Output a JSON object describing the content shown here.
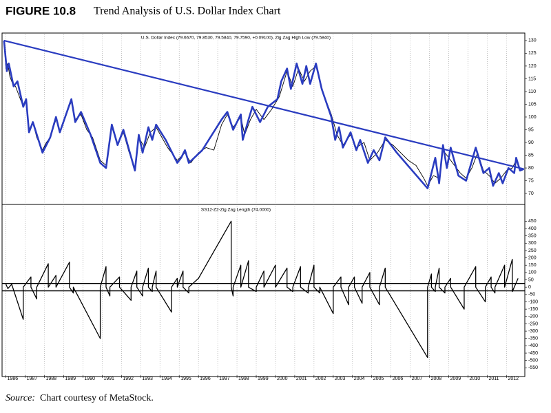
{
  "figure_label": "FIGURE 10.8",
  "figure_title": "Trend Analysis of U.S. Dollar Index Chart",
  "source": {
    "label": "Source:",
    "text": "Chart courtesy of MetaStock."
  },
  "chart_data": [
    {
      "type": "line",
      "title": "U.S. Dollar Index (79.6670, 79.8530, 79.5840, 79.7590, +0.09100), Zig Zag High Low (79.5840)",
      "xlim": [
        1985.8,
        2012.95
      ],
      "xticks": [
        1986,
        1987,
        1988,
        1989,
        1990,
        1991,
        1992,
        1993,
        1994,
        1995,
        1996,
        1997,
        1998,
        1999,
        2000,
        2001,
        2002,
        2003,
        2004,
        2005,
        2006,
        2007,
        2008,
        2009,
        2010,
        2011,
        2012
      ],
      "ylim": [
        65.7,
        132.4
      ],
      "yticks": [
        70,
        75,
        80,
        85,
        90,
        95,
        100,
        105,
        110,
        115,
        120,
        125,
        130
      ],
      "xgrid": true,
      "series": [
        {
          "color": "#000000",
          "width": 0.9,
          "x": [
            1985.9,
            1986.0,
            1986.1,
            1986.2,
            1986.35,
            1986.5,
            1986.7,
            1986.9,
            1987.05,
            1987.2,
            1987.4,
            1987.6,
            1987.9,
            1988.1,
            1988.3,
            1988.6,
            1988.8,
            1989.1,
            1989.4,
            1989.6,
            1989.9,
            1990.2,
            1990.5,
            1990.9,
            1991.2,
            1991.5,
            1991.8,
            1992.1,
            1992.4,
            1992.7,
            1992.9,
            1993.2,
            1993.5,
            1993.8,
            1994.1,
            1994.4,
            1994.9,
            1995.3,
            1995.6,
            1996.0,
            1996.4,
            1996.8,
            1997.2,
            1997.5,
            1997.8,
            1998.2,
            1998.4,
            1998.7,
            1999.0,
            1999.4,
            1999.8,
            2000.2,
            2000.6,
            2000.9,
            2001.2,
            2001.5,
            2001.8,
            2002.1,
            2002.5,
            2002.9,
            2003.2,
            2003.5,
            2003.9,
            2004.2,
            2004.6,
            2004.9,
            2005.3,
            2005.7,
            2006.1,
            2006.5,
            2006.9,
            2007.3,
            2007.7,
            2007.9,
            2008.2,
            2008.5,
            2008.7,
            2009.0,
            2009.3,
            2009.6,
            2009.9,
            2010.2,
            2010.5,
            2010.8,
            2011.1,
            2011.4,
            2011.7,
            2012.0,
            2012.3,
            2012.5,
            2012.7,
            2012.9
          ],
          "values": [
            130,
            119,
            121,
            116,
            113,
            112,
            108,
            104,
            106,
            95,
            98,
            92,
            87,
            90,
            92,
            99,
            94,
            101,
            106,
            99,
            101,
            95,
            92,
            83,
            81,
            96,
            89,
            94,
            86,
            80,
            92,
            88,
            94,
            96,
            92,
            88,
            83,
            86,
            82,
            86,
            88,
            87,
            97,
            101,
            96,
            100,
            93,
            99,
            103,
            99,
            103,
            108,
            118,
            112,
            119,
            114,
            118,
            120,
            109,
            101,
            93,
            89,
            93,
            88,
            90,
            83,
            86,
            91,
            89,
            86,
            83,
            81,
            76,
            73,
            77,
            76,
            87,
            84,
            81,
            78,
            76,
            80,
            86,
            79,
            77,
            74,
            76,
            79,
            80,
            83,
            79,
            79.7
          ]
        },
        {
          "color": "#2a3cc0",
          "width": 2.6,
          "x": [
            1985.9,
            1986.05,
            1986.15,
            1986.4,
            1986.6,
            1986.9,
            1987.05,
            1987.2,
            1987.4,
            1987.9,
            1988.3,
            1988.6,
            1988.8,
            1989.4,
            1989.6,
            1989.9,
            1990.4,
            1990.9,
            1991.2,
            1991.5,
            1991.8,
            1992.1,
            1992.7,
            1992.9,
            1993.1,
            1993.4,
            1993.6,
            1993.8,
            1994.3,
            1994.9,
            1995.1,
            1995.3,
            1995.5,
            1996.2,
            1997.2,
            1997.5,
            1997.8,
            1998.2,
            1998.3,
            1998.6,
            1998.8,
            1999.2,
            1999.6,
            2000.1,
            2000.3,
            2000.6,
            2000.8,
            2001.1,
            2001.4,
            2001.6,
            2001.8,
            2002.1,
            2002.4,
            2002.9,
            2003.1,
            2003.3,
            2003.5,
            2003.9,
            2004.2,
            2004.4,
            2004.8,
            2005.1,
            2005.4,
            2005.7,
            2006.0,
            2006.3,
            2007.9,
            2008.3,
            2008.5,
            2008.7,
            2008.9,
            2009.1,
            2009.5,
            2009.9,
            2010.4,
            2010.8,
            2011.1,
            2011.3,
            2011.6,
            2011.8,
            2012.1,
            2012.4,
            2012.5,
            2012.7,
            2012.9
          ],
          "values": [
            130,
            118,
            121,
            112,
            114,
            104,
            107,
            94,
            98,
            86,
            92,
            100,
            94,
            107,
            98,
            102,
            93,
            82,
            80,
            97,
            89,
            95,
            79,
            93,
            86,
            96,
            91,
            97,
            91,
            82,
            84,
            87,
            82,
            87,
            99,
            102,
            95,
            101,
            91,
            99,
            104,
            98,
            104,
            107,
            114,
            119,
            111,
            121,
            113,
            120,
            113,
            121,
            111,
            100,
            91,
            96,
            88,
            94,
            87,
            91,
            82,
            87,
            83,
            92,
            89,
            86,
            72,
            84,
            74,
            89,
            80,
            88,
            77,
            75,
            88,
            78,
            80,
            73,
            78,
            74,
            80,
            78,
            84,
            79,
            79.6
          ]
        },
        {
          "color": "#2a3cc0",
          "width": 2.2,
          "x": [
            1985.9,
            2012.9
          ],
          "values": [
            130,
            79.6
          ]
        }
      ]
    },
    {
      "type": "line",
      "title": "SS12-Z2-Zig Zag Length (74.0000)",
      "xlim": [
        1985.8,
        2012.95
      ],
      "xticks": [
        1986,
        1987,
        1988,
        1989,
        1990,
        1991,
        1992,
        1993,
        1994,
        1995,
        1996,
        1997,
        1998,
        1999,
        2000,
        2001,
        2002,
        2003,
        2004,
        2005,
        2006,
        2007,
        2008,
        2009,
        2010,
        2011,
        2012
      ],
      "ylim": [
        -600,
        550
      ],
      "yticks": [
        -550,
        -500,
        -450,
        -400,
        -350,
        -300,
        -250,
        -200,
        -150,
        -100,
        -50,
        0,
        50,
        100,
        150,
        200,
        250,
        300,
        350,
        400,
        450
      ],
      "xgrid": true,
      "hlines": [
        25,
        -25
      ],
      "series": [
        {
          "color": "#000000",
          "width": 1.3,
          "x": [
            1986.0,
            1986.1,
            1986.3,
            1986.4,
            1986.9,
            1986.9,
            1987.3,
            1987.3,
            1987.6,
            1987.6,
            1988.2,
            1988.2,
            1988.6,
            1988.6,
            1989.3,
            1989.3,
            1989.5,
            1989.5,
            1990.9,
            1990.9,
            1991.2,
            1991.2,
            1991.4,
            1991.4,
            1991.9,
            1991.9,
            1992.5,
            1992.5,
            1992.8,
            1992.8,
            1993.1,
            1993.1,
            1993.4,
            1993.4,
            1993.6,
            1993.6,
            1993.8,
            1993.8,
            1994.6,
            1994.6,
            1994.9,
            1994.9,
            1995.2,
            1995.2,
            1995.5,
            1995.5,
            1996.0,
            1997.7,
            1997.7,
            1997.8,
            1997.8,
            1998.2,
            1998.2,
            1998.6,
            1998.6,
            1999.0,
            1999.0,
            1999.4,
            1999.4,
            2000.0,
            2000.0,
            2000.6,
            2000.6,
            2000.9,
            2000.9,
            2001.3,
            2001.3,
            2001.7,
            2001.7,
            2002.0,
            2002.0,
            2002.3,
            2002.3,
            2003.0,
            2003.0,
            2003.4,
            2003.4,
            2003.8,
            2003.8,
            2004.1,
            2004.1,
            2004.5,
            2004.5,
            2004.9,
            2004.9,
            2005.4,
            2005.4,
            2005.7,
            2005.7,
            2007.9,
            2007.9,
            2008.1,
            2008.1,
            2008.3,
            2008.3,
            2008.5,
            2008.5,
            2008.8,
            2008.8,
            2009.1,
            2009.1,
            2009.8,
            2009.8,
            2010.4,
            2010.4,
            2010.9,
            2010.9,
            2011.2,
            2011.2,
            2011.4,
            2011.4,
            2011.9,
            2011.9,
            2012.3,
            2012.3,
            2012.6
          ],
          "values": [
            20,
            -10,
            20,
            -20,
            -220,
            0,
            70,
            0,
            -80,
            0,
            160,
            0,
            80,
            0,
            170,
            0,
            -40,
            0,
            -350,
            0,
            140,
            0,
            -60,
            0,
            70,
            0,
            -90,
            0,
            110,
            0,
            -60,
            0,
            130,
            0,
            -30,
            0,
            110,
            0,
            -170,
            0,
            60,
            0,
            110,
            0,
            -40,
            0,
            60,
            450,
            0,
            -60,
            0,
            150,
            0,
            180,
            0,
            -30,
            0,
            110,
            0,
            150,
            0,
            130,
            0,
            -30,
            0,
            140,
            0,
            -40,
            0,
            150,
            0,
            -40,
            0,
            -180,
            0,
            70,
            0,
            -120,
            0,
            70,
            0,
            -110,
            0,
            100,
            0,
            -120,
            0,
            130,
            0,
            -480,
            0,
            90,
            0,
            -30,
            0,
            130,
            0,
            -40,
            0,
            60,
            0,
            -150,
            0,
            140,
            0,
            -100,
            0,
            70,
            0,
            -40,
            0,
            150,
            0,
            190,
            -30,
            60
          ]
        }
      ]
    }
  ]
}
